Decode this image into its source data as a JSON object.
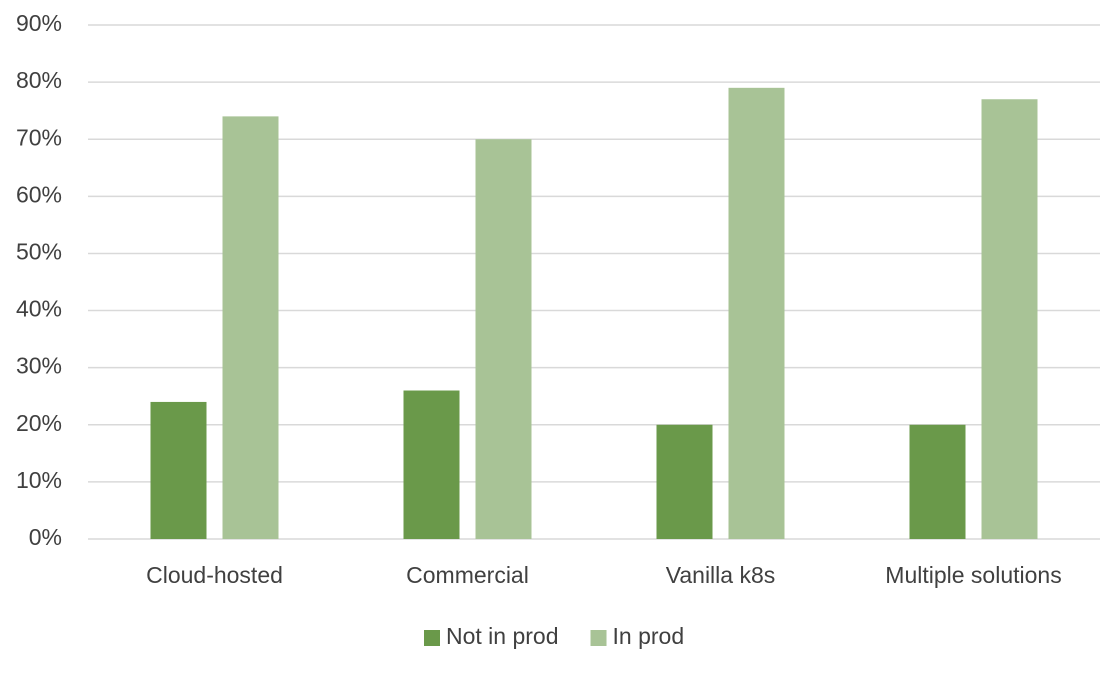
{
  "chart_data": {
    "type": "bar",
    "categories": [
      "Cloud-hosted",
      "Commercial",
      "Vanilla k8s",
      "Multiple solutions"
    ],
    "series": [
      {
        "name": "Not in prod",
        "color": "#6a994a",
        "values": [
          24,
          26,
          20,
          20
        ]
      },
      {
        "name": "In prod",
        "color": "#a8c396",
        "values": [
          74,
          70,
          79,
          77
        ]
      }
    ],
    "ylim": [
      0,
      90
    ],
    "yticks": [
      {
        "value": 0,
        "label": "0%"
      },
      {
        "value": 10,
        "label": "10%"
      },
      {
        "value": 20,
        "label": "20%"
      },
      {
        "value": 30,
        "label": "30%"
      },
      {
        "value": 40,
        "label": "40%"
      },
      {
        "value": 50,
        "label": "50%"
      },
      {
        "value": 60,
        "label": "60%"
      },
      {
        "value": 70,
        "label": "70%"
      },
      {
        "value": 80,
        "label": "80%"
      },
      {
        "value": 90,
        "label": "90%"
      }
    ],
    "grid": true,
    "legend": "bottom"
  }
}
